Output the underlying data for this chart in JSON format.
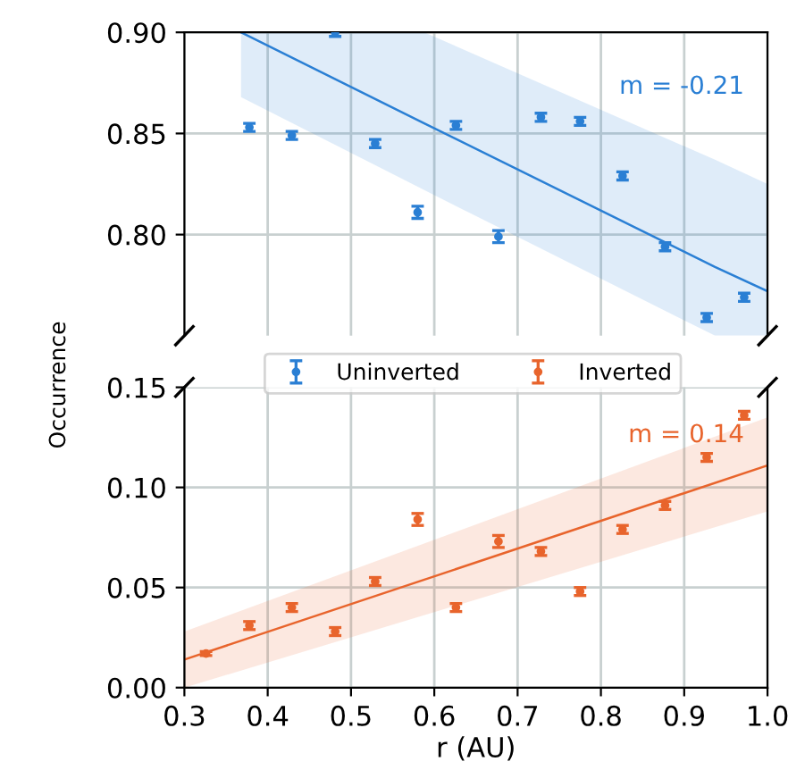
{
  "chart_data": [
    {
      "type": "scatter",
      "ylabel": "Occurrence",
      "xlim": [
        0.3,
        1.0
      ],
      "xticks": [
        0.3,
        0.4,
        0.5,
        0.6,
        0.7,
        0.8,
        0.9,
        1.0
      ],
      "ylim": [
        0.75,
        0.9
      ],
      "yticks": [
        {
          "value": 0.8,
          "label": "0.80"
        },
        0.85,
        {
          "value": 0.9,
          "label": "0.90"
        }
      ],
      "tick_labels": "y",
      "grid": true,
      "legend": "bottom",
      "annotations": [
        "m = -0.21"
      ],
      "series": [
        {
          "name": "Uninverted",
          "color": "#2a7fd4",
          "marker": "circle",
          "x": [
            0.378,
            0.429,
            0.481,
            0.529,
            0.58,
            0.626,
            0.677,
            0.728,
            0.775,
            0.826,
            0.877,
            0.927,
            0.972
          ],
          "values": [
            0.853,
            0.849,
            0.9,
            0.845,
            0.811,
            0.854,
            0.799,
            0.858,
            0.856,
            0.829,
            0.794,
            0.759,
            0.769
          ],
          "errors": [
            0.002,
            0.002,
            0.002,
            0.002,
            0.003,
            0.002,
            0.003,
            0.002,
            0.002,
            0.002,
            0.002,
            0.002,
            0.002
          ]
        },
        {
          "type": "line",
          "color": "#2a7fd4",
          "x": [
            0.368,
            0.588,
            0.937,
            1.0
          ],
          "values": [
            0.9,
            0.855,
            0.784,
            0.772
          ],
          "lower": [
            0.868,
            0.822,
            0.75,
            0.75
          ],
          "upper": [
            0.9,
            0.9,
            0.837,
            0.825
          ]
        }
      ]
    },
    {
      "type": "scatter",
      "xlabel": "r (AU)",
      "xlim": [
        0.3,
        1.0
      ],
      "xticks": [
        0.3,
        0.4,
        0.5,
        0.6,
        0.7,
        0.8,
        0.9,
        {
          "value": 1.0,
          "label": "1.0"
        }
      ],
      "ylim": [
        0.0,
        0.15
      ],
      "yticks": [
        {
          "value": 0.0,
          "label": "0.00"
        },
        0.05,
        {
          "value": 0.1,
          "label": "0.10"
        },
        0.15
      ],
      "grid": true,
      "annotations": [
        "m = 0.14"
      ],
      "series": [
        {
          "name": "Inverted",
          "color": "#e8642c",
          "marker": "circle",
          "x": [
            0.326,
            0.378,
            0.429,
            0.481,
            0.529,
            0.58,
            0.626,
            0.677,
            0.728,
            0.775,
            0.826,
            0.877,
            0.927,
            0.972
          ],
          "values": [
            0.017,
            0.031,
            0.04,
            0.028,
            0.053,
            0.084,
            0.04,
            0.073,
            0.068,
            0.048,
            0.079,
            0.091,
            0.115,
            0.136
          ],
          "errors": [
            0.001,
            0.002,
            0.002,
            0.002,
            0.002,
            0.003,
            0.002,
            0.003,
            0.002,
            0.002,
            0.002,
            0.002,
            0.002,
            0.002
          ]
        },
        {
          "type": "line",
          "color": "#e8642c",
          "x": [
            0.3,
            1.0
          ],
          "values": [
            0.014,
            0.111
          ],
          "lower": [
            0.0,
            0.088
          ],
          "upper": [
            0.028,
            0.135
          ]
        }
      ]
    }
  ]
}
